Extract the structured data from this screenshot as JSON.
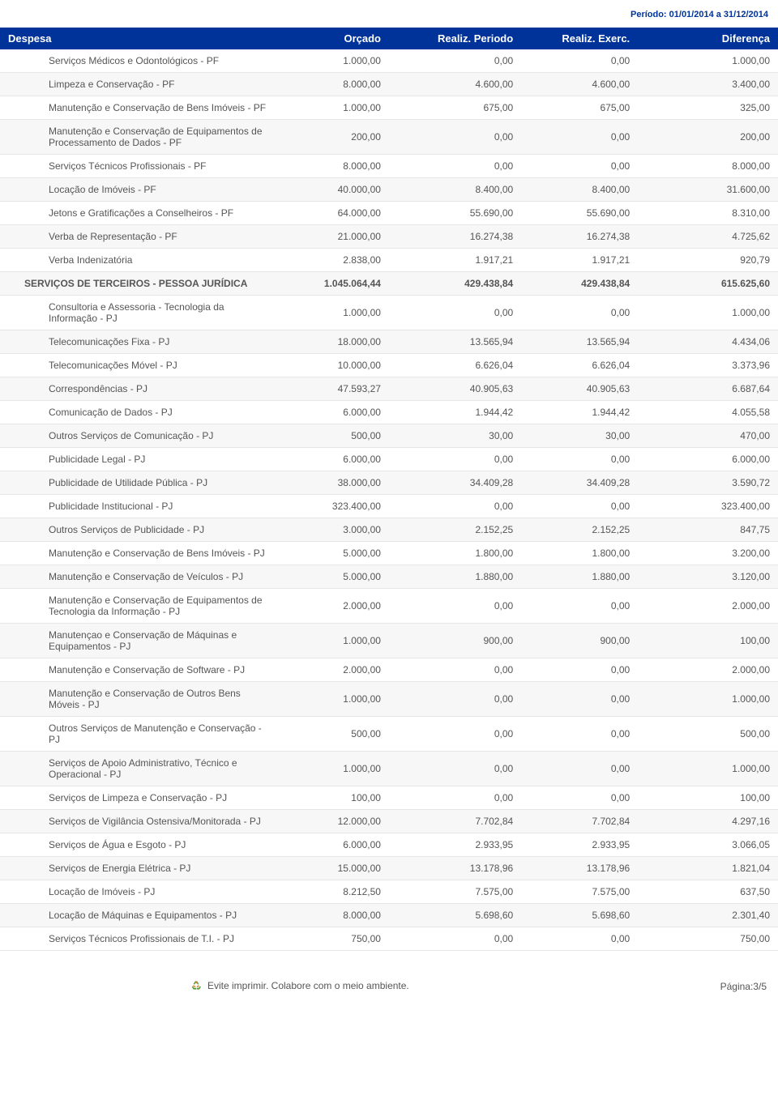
{
  "period": "Período: 01/01/2014 a 31/12/2014",
  "columns": [
    "Despesa",
    "Orçado",
    "Realiz. Periodo",
    "Realiz. Exerc.",
    "Diferença"
  ],
  "rows": [
    {
      "type": "item",
      "cells": [
        "Serviços Médicos e Odontológicos - PF",
        "1.000,00",
        "0,00",
        "0,00",
        "1.000,00"
      ]
    },
    {
      "type": "item",
      "cells": [
        "Limpeza e Conservação - PF",
        "8.000,00",
        "4.600,00",
        "4.600,00",
        "3.400,00"
      ]
    },
    {
      "type": "item",
      "cells": [
        "Manutenção e Conservação de Bens Imóveis - PF",
        "1.000,00",
        "675,00",
        "675,00",
        "325,00"
      ]
    },
    {
      "type": "item",
      "cells": [
        "Manutenção e Conservação de Equipamentos de Processamento de Dados - PF",
        "200,00",
        "0,00",
        "0,00",
        "200,00"
      ]
    },
    {
      "type": "item",
      "cells": [
        "Serviços Técnicos Profissionais - PF",
        "8.000,00",
        "0,00",
        "0,00",
        "8.000,00"
      ]
    },
    {
      "type": "item",
      "cells": [
        "Locação de Imóveis - PF",
        "40.000,00",
        "8.400,00",
        "8.400,00",
        "31.600,00"
      ]
    },
    {
      "type": "item",
      "cells": [
        "Jetons e Gratificações a Conselheiros - PF",
        "64.000,00",
        "55.690,00",
        "55.690,00",
        "8.310,00"
      ]
    },
    {
      "type": "item",
      "cells": [
        "Verba de Representação - PF",
        "21.000,00",
        "16.274,38",
        "16.274,38",
        "4.725,62"
      ]
    },
    {
      "type": "item",
      "cells": [
        "Verba Indenizatória",
        "2.838,00",
        "1.917,21",
        "1.917,21",
        "920,79"
      ]
    },
    {
      "type": "group",
      "cells": [
        "SERVIÇOS DE TERCEIROS - PESSOA JURÍDICA",
        "1.045.064,44",
        "429.438,84",
        "429.438,84",
        "615.625,60"
      ]
    },
    {
      "type": "item",
      "cells": [
        "Consultoria e Assessoria - Tecnologia da Informação - PJ",
        "1.000,00",
        "0,00",
        "0,00",
        "1.000,00"
      ]
    },
    {
      "type": "item",
      "cells": [
        "Telecomunicações Fixa - PJ",
        "18.000,00",
        "13.565,94",
        "13.565,94",
        "4.434,06"
      ]
    },
    {
      "type": "item",
      "cells": [
        "Telecomunicações Móvel - PJ",
        "10.000,00",
        "6.626,04",
        "6.626,04",
        "3.373,96"
      ]
    },
    {
      "type": "item",
      "cells": [
        "Correspondências - PJ",
        "47.593,27",
        "40.905,63",
        "40.905,63",
        "6.687,64"
      ]
    },
    {
      "type": "item",
      "cells": [
        "Comunicação de Dados - PJ",
        "6.000,00",
        "1.944,42",
        "1.944,42",
        "4.055,58"
      ]
    },
    {
      "type": "item",
      "cells": [
        "Outros Serviços de Comunicação - PJ",
        "500,00",
        "30,00",
        "30,00",
        "470,00"
      ]
    },
    {
      "type": "item",
      "cells": [
        "Publicidade Legal - PJ",
        "6.000,00",
        "0,00",
        "0,00",
        "6.000,00"
      ]
    },
    {
      "type": "item",
      "cells": [
        "Publicidade de Utilidade Pública - PJ",
        "38.000,00",
        "34.409,28",
        "34.409,28",
        "3.590,72"
      ]
    },
    {
      "type": "item",
      "cells": [
        "Publicidade Institucional - PJ",
        "323.400,00",
        "0,00",
        "0,00",
        "323.400,00"
      ]
    },
    {
      "type": "item",
      "cells": [
        "Outros Serviços de Publicidade - PJ",
        "3.000,00",
        "2.152,25",
        "2.152,25",
        "847,75"
      ]
    },
    {
      "type": "item",
      "cells": [
        "Manutenção e Conservação de Bens Imóveis - PJ",
        "5.000,00",
        "1.800,00",
        "1.800,00",
        "3.200,00"
      ]
    },
    {
      "type": "item",
      "cells": [
        "Manutenção e Conservação de Veículos - PJ",
        "5.000,00",
        "1.880,00",
        "1.880,00",
        "3.120,00"
      ]
    },
    {
      "type": "item",
      "cells": [
        "Manutenção e Conservação de Equipamentos de Tecnologia da Informação - PJ",
        "2.000,00",
        "0,00",
        "0,00",
        "2.000,00"
      ]
    },
    {
      "type": "item",
      "cells": [
        "Manutençao e Conservação de Máquinas e Equipamentos - PJ",
        "1.000,00",
        "900,00",
        "900,00",
        "100,00"
      ]
    },
    {
      "type": "item",
      "cells": [
        "Manutenção e Conservação de Software - PJ",
        "2.000,00",
        "0,00",
        "0,00",
        "2.000,00"
      ]
    },
    {
      "type": "item",
      "cells": [
        "Manutenção e Conservação de Outros Bens Móveis - PJ",
        "1.000,00",
        "0,00",
        "0,00",
        "1.000,00"
      ]
    },
    {
      "type": "item",
      "cells": [
        "Outros Serviços de Manutenção e Conservação - PJ",
        "500,00",
        "0,00",
        "0,00",
        "500,00"
      ]
    },
    {
      "type": "item",
      "cells": [
        "Serviços de Apoio Administrativo, Técnico e Operacional - PJ",
        "1.000,00",
        "0,00",
        "0,00",
        "1.000,00"
      ]
    },
    {
      "type": "item",
      "cells": [
        "Serviços de Limpeza e Conservação - PJ",
        "100,00",
        "0,00",
        "0,00",
        "100,00"
      ]
    },
    {
      "type": "item",
      "cells": [
        "Serviços de Vigilância Ostensiva/Monitorada - PJ",
        "12.000,00",
        "7.702,84",
        "7.702,84",
        "4.297,16"
      ]
    },
    {
      "type": "item",
      "cells": [
        "Serviços de Água e Esgoto - PJ",
        "6.000,00",
        "2.933,95",
        "2.933,95",
        "3.066,05"
      ]
    },
    {
      "type": "item",
      "cells": [
        "Serviços de Energia Elétrica - PJ",
        "15.000,00",
        "13.178,96",
        "13.178,96",
        "1.821,04"
      ]
    },
    {
      "type": "item",
      "cells": [
        "Locação de Imóveis - PJ",
        "8.212,50",
        "7.575,00",
        "7.575,00",
        "637,50"
      ]
    },
    {
      "type": "item",
      "cells": [
        "Locação de Máquinas e Equipamentos - PJ",
        "8.000,00",
        "5.698,60",
        "5.698,60",
        "2.301,40"
      ]
    },
    {
      "type": "item",
      "cells": [
        "Serviços Técnicos Profissionais de T.I. - PJ",
        "750,00",
        "0,00",
        "0,00",
        "750,00"
      ]
    }
  ],
  "footer_text": "Evite imprimir. Colabore com o meio ambiente.",
  "page_number": "Página:3/5",
  "colors": {
    "header_bg": "#003399",
    "header_text": "#ffffff",
    "period_text": "#003399",
    "body_text": "#555555",
    "row_alt": "#f7f7f7",
    "border": "#e6e6e6"
  }
}
